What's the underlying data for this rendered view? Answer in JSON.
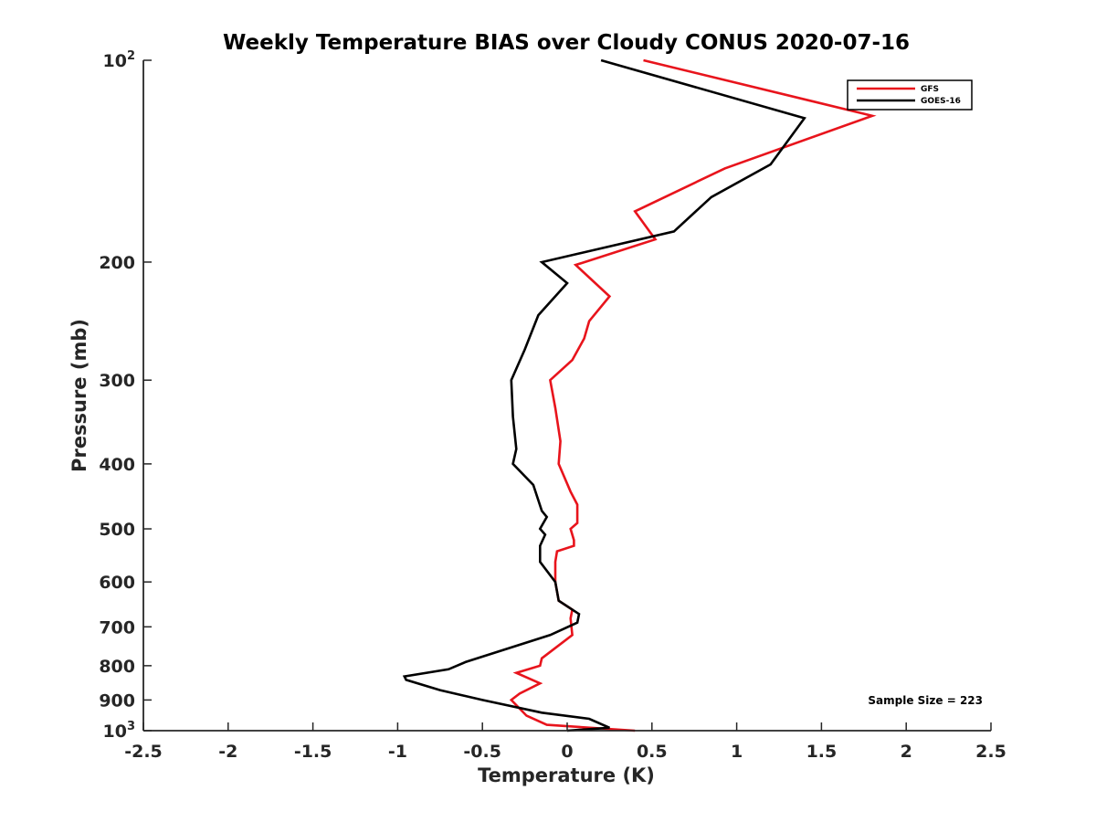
{
  "chart_data": {
    "type": "line",
    "title": "Weekly Temperature BIAS over Cloudy CONUS 2020-07-16",
    "xlabel": "Temperature (K)",
    "ylabel": "Pressure (mb)",
    "xlim": [
      -2.5,
      2.5
    ],
    "ylim": [
      100,
      1000
    ],
    "y_scale": "log",
    "y_reversed": true,
    "x_ticks": [
      "-2.5",
      "-2",
      "-1.5",
      "-1",
      "-0.5",
      "0",
      "0.5",
      "1",
      "1.5",
      "2",
      "2.5"
    ],
    "x_tick_values": [
      -2.5,
      -2,
      -1.5,
      -1,
      -0.5,
      0,
      0.5,
      1,
      1.5,
      2,
      2.5
    ],
    "y_tick_values": [
      100,
      200,
      300,
      400,
      500,
      600,
      700,
      800,
      900,
      1000
    ],
    "y_ticks": [
      {
        "base": "10",
        "exp": "2"
      },
      {
        "base": "200",
        "exp": ""
      },
      {
        "base": "300",
        "exp": ""
      },
      {
        "base": "400",
        "exp": ""
      },
      {
        "base": "500",
        "exp": ""
      },
      {
        "base": "600",
        "exp": ""
      },
      {
        "base": "700",
        "exp": ""
      },
      {
        "base": "800",
        "exp": ""
      },
      {
        "base": "900",
        "exp": ""
      },
      {
        "base": "10",
        "exp": "3"
      }
    ],
    "grid": false,
    "legend_position": "top-right",
    "series": [
      {
        "name": "GFS",
        "color": "#e8141c",
        "points": [
          [
            0.45,
            100
          ],
          [
            1.8,
            121
          ],
          [
            0.93,
            145
          ],
          [
            0.4,
            168
          ],
          [
            0.52,
            185
          ],
          [
            0.05,
            202
          ],
          [
            0.25,
            225
          ],
          [
            0.13,
            245
          ],
          [
            0.1,
            260
          ],
          [
            0.03,
            280
          ],
          [
            -0.1,
            300
          ],
          [
            -0.07,
            330
          ],
          [
            -0.04,
            370
          ],
          [
            -0.05,
            400
          ],
          [
            0.02,
            440
          ],
          [
            0.06,
            460
          ],
          [
            0.06,
            490
          ],
          [
            0.02,
            500
          ],
          [
            0.04,
            520
          ],
          [
            0.04,
            530
          ],
          [
            -0.06,
            540
          ],
          [
            -0.07,
            560
          ],
          [
            -0.07,
            600
          ],
          [
            -0.05,
            640
          ],
          [
            0.03,
            660
          ],
          [
            0.02,
            680
          ],
          [
            0.03,
            720
          ],
          [
            -0.15,
            780
          ],
          [
            -0.16,
            800
          ],
          [
            -0.3,
            820
          ],
          [
            -0.16,
            850
          ],
          [
            -0.28,
            880
          ],
          [
            -0.33,
            900
          ],
          [
            -0.24,
            950
          ],
          [
            -0.12,
            980
          ],
          [
            0.4,
            1000
          ]
        ]
      },
      {
        "name": "GOES-16",
        "color": "#000000",
        "points": [
          [
            0.2,
            100
          ],
          [
            1.4,
            122
          ],
          [
            1.2,
            143
          ],
          [
            0.85,
            160
          ],
          [
            0.63,
            180
          ],
          [
            -0.15,
            200
          ],
          [
            0.0,
            215
          ],
          [
            -0.17,
            240
          ],
          [
            -0.25,
            270
          ],
          [
            -0.33,
            300
          ],
          [
            -0.32,
            340
          ],
          [
            -0.3,
            380
          ],
          [
            -0.32,
            400
          ],
          [
            -0.2,
            430
          ],
          [
            -0.15,
            470
          ],
          [
            -0.12,
            480
          ],
          [
            -0.16,
            500
          ],
          [
            -0.13,
            510
          ],
          [
            -0.16,
            530
          ],
          [
            -0.16,
            540
          ],
          [
            -0.16,
            560
          ],
          [
            -0.07,
            600
          ],
          [
            -0.05,
            640
          ],
          [
            0.07,
            670
          ],
          [
            0.06,
            690
          ],
          [
            -0.1,
            720
          ],
          [
            -0.6,
            790
          ],
          [
            -0.7,
            810
          ],
          [
            -0.96,
            830
          ],
          [
            -0.95,
            840
          ],
          [
            -0.75,
            870
          ],
          [
            -0.5,
            900
          ],
          [
            -0.15,
            940
          ],
          [
            0.13,
            960
          ],
          [
            0.25,
            990
          ],
          [
            0.0,
            1000
          ]
        ]
      }
    ],
    "annotation": "Sample Size = 223"
  }
}
